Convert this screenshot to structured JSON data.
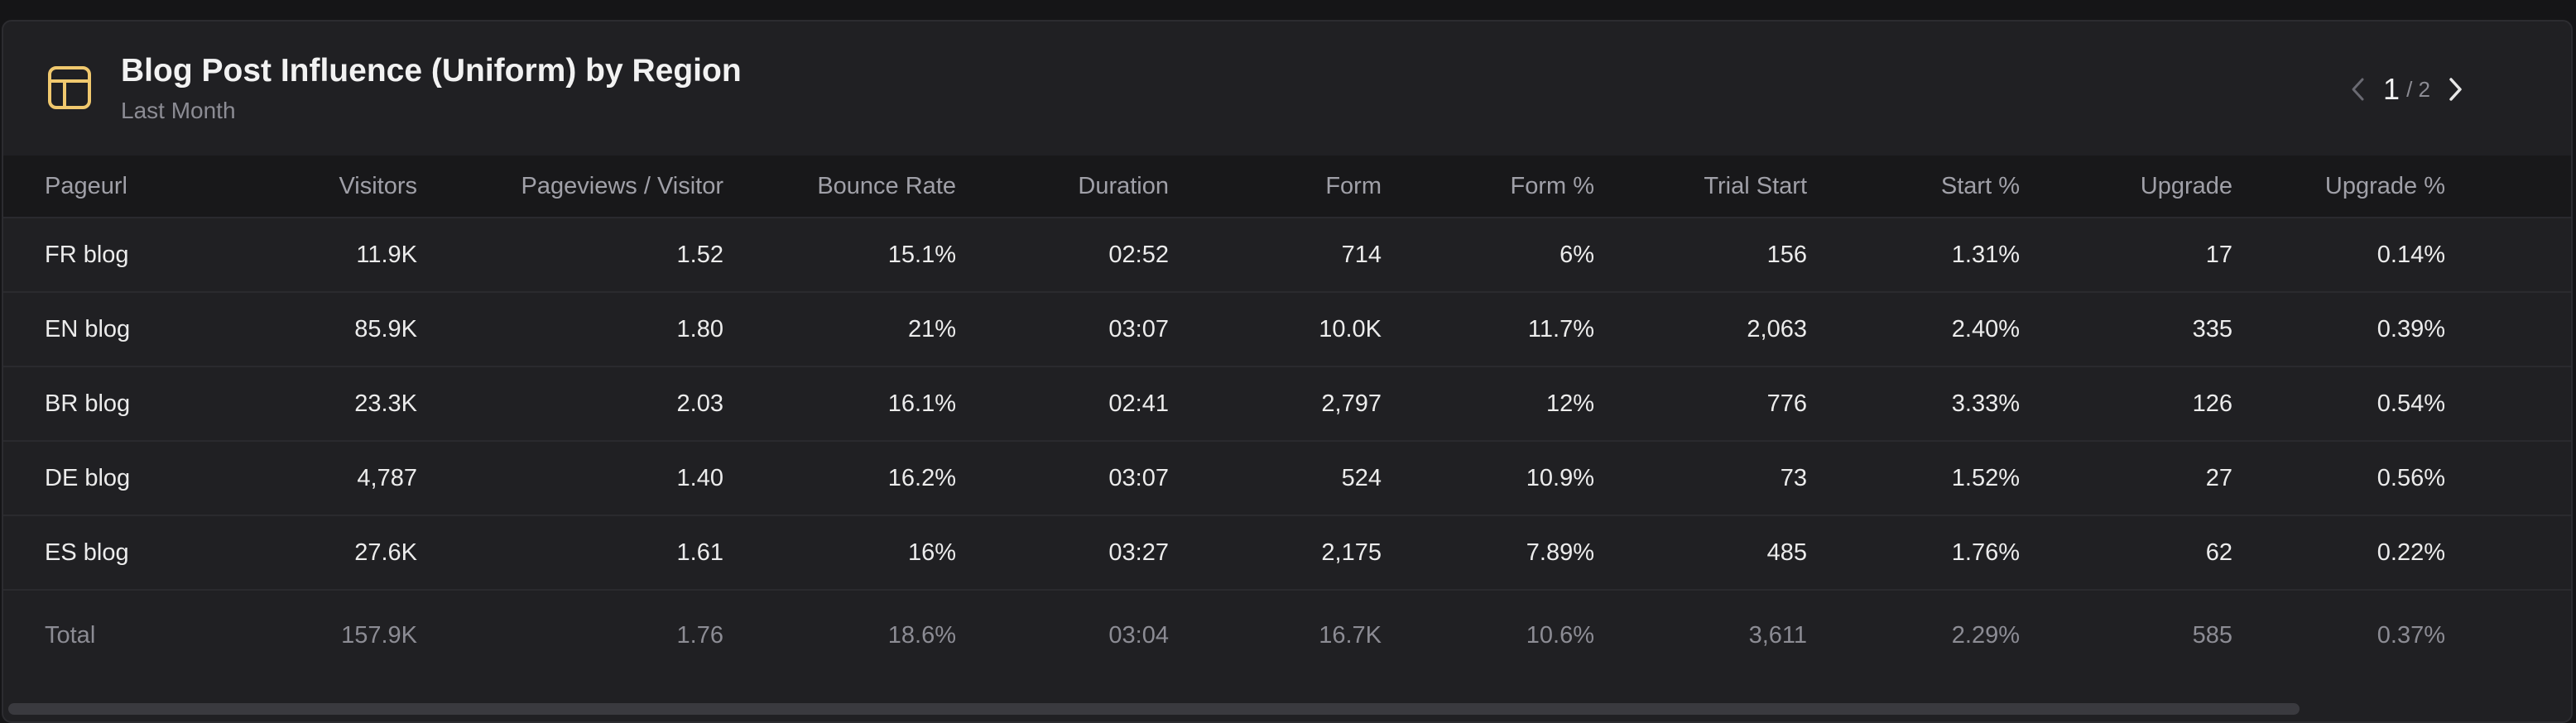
{
  "header": {
    "title": "Blog Post Influence (Uniform) by Region",
    "subtitle": "Last Month",
    "icon": "table-icon",
    "accent_color": "#f0c86e"
  },
  "pager": {
    "current": "1",
    "total": "/ 2",
    "prev_icon": "chevron-left-icon",
    "next_icon": "chevron-right-icon"
  },
  "table": {
    "columns": [
      "Pageurl",
      "Visitors",
      "Pageviews / Visitor",
      "Bounce Rate",
      "Duration",
      "Form",
      "Form %",
      "Trial Start",
      "Start %",
      "Upgrade",
      "Upgrade %"
    ],
    "rows": [
      [
        "FR blog",
        "11.9K",
        "1.52",
        "15.1%",
        "02:52",
        "714",
        "6%",
        "156",
        "1.31%",
        "17",
        "0.14%"
      ],
      [
        "EN blog",
        "85.9K",
        "1.80",
        "21%",
        "03:07",
        "10.0K",
        "11.7%",
        "2,063",
        "2.40%",
        "335",
        "0.39%"
      ],
      [
        "BR blog",
        "23.3K",
        "2.03",
        "16.1%",
        "02:41",
        "2,797",
        "12%",
        "776",
        "3.33%",
        "126",
        "0.54%"
      ],
      [
        "DE blog",
        "4,787",
        "1.40",
        "16.2%",
        "03:07",
        "524",
        "10.9%",
        "73",
        "1.52%",
        "27",
        "0.56%"
      ],
      [
        "ES blog",
        "27.6K",
        "1.61",
        "16%",
        "03:27",
        "2,175",
        "7.89%",
        "485",
        "1.76%",
        "62",
        "0.22%"
      ]
    ],
    "total": [
      "Total",
      "157.9K",
      "1.76",
      "18.6%",
      "03:04",
      "16.7K",
      "10.6%",
      "3,611",
      "2.29%",
      "585",
      "0.37%"
    ]
  }
}
